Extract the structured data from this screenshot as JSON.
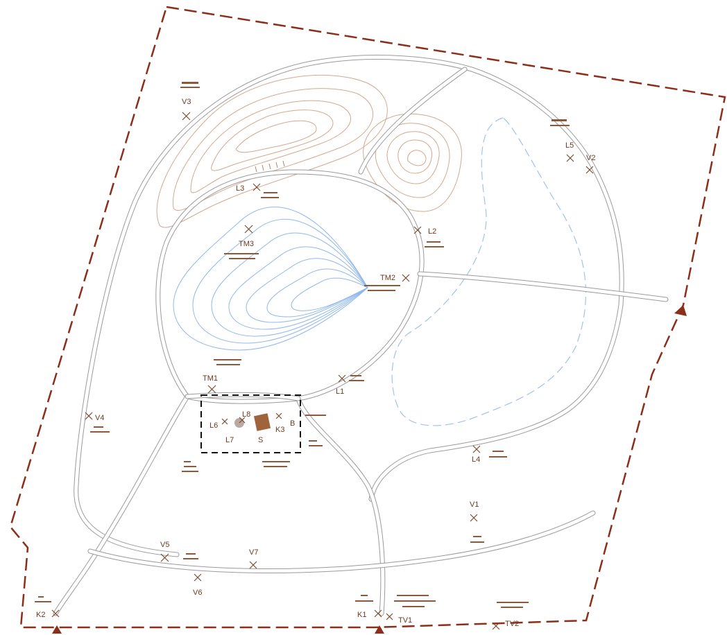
{
  "colors": {
    "boundary": "#8b2e1a",
    "roads": "#9a9a9a",
    "hill_contours": "#d4a88c",
    "lake_contours": "#8fb8ec",
    "stream": "#9ec3f0",
    "labels": "#6b3a1e",
    "site_building": "#a0643c"
  },
  "icons": {
    "station_marker": "x-marker-icon",
    "entry_arrow": "entry-triangle-icon"
  },
  "stations": {
    "V1": "V1",
    "V2": "V2",
    "V3": "V3",
    "V4": "V4",
    "V5": "V5",
    "V6": "V6",
    "V7": "V7",
    "L1": "L1",
    "L2": "L2",
    "L3": "L3",
    "L4": "L4",
    "L5": "L5",
    "L6": "L6",
    "L7": "L7",
    "L8": "L8",
    "TM1": "TM1",
    "TM2": "TM2",
    "TM3": "TM3",
    "K1": "K1",
    "K2": "K2",
    "K3": "K3",
    "TV1": "TV1",
    "TV2": "TV2",
    "S": "S",
    "B": "B"
  }
}
